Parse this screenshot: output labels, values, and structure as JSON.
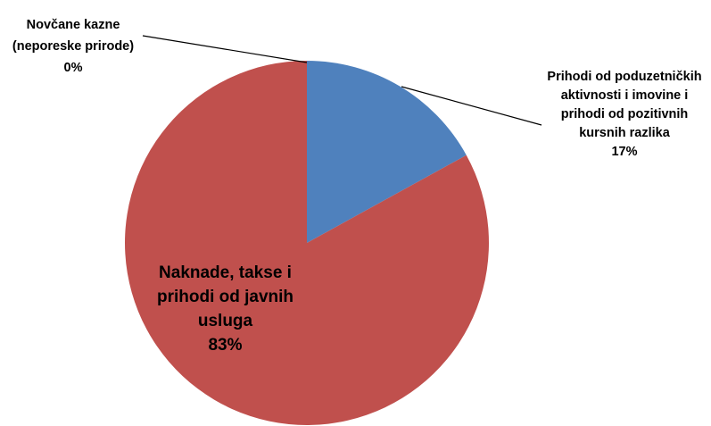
{
  "chart_data": {
    "type": "pie",
    "categories": [
      "Prihodi od poduzetničkih aktivnosti i imovine i prihodi od pozitivnih kursnih razlika",
      "Naknade, takse i prihodi od javnih usluga",
      "Novčane kazne (neporeske prirode)"
    ],
    "values": [
      17,
      83,
      0
    ],
    "value_labels": [
      "17%",
      "83%",
      "0%"
    ],
    "colors": [
      "#4f81bd",
      "#c0504d",
      "#9bbb59"
    ]
  }
}
